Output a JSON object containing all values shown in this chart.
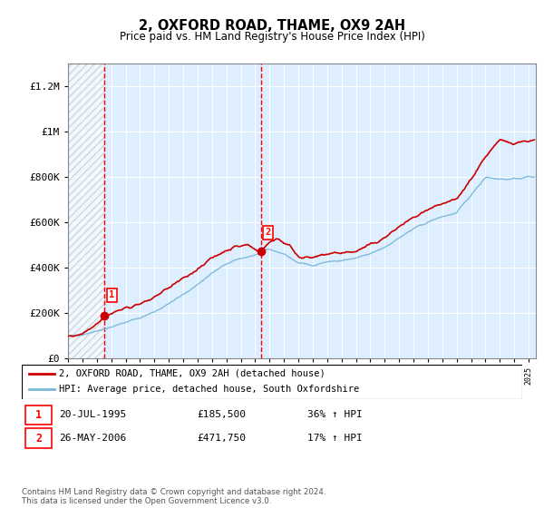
{
  "title": "2, OXFORD ROAD, THAME, OX9 2AH",
  "subtitle": "Price paid vs. HM Land Registry's House Price Index (HPI)",
  "legend_line1": "2, OXFORD ROAD, THAME, OX9 2AH (detached house)",
  "legend_line2": "HPI: Average price, detached house, South Oxfordshire",
  "sale1_date": "20-JUL-1995",
  "sale1_price": 185500,
  "sale1_hpi": "36% ↑ HPI",
  "sale1_label": "1",
  "sale1_year": 1995.55,
  "sale2_date": "26-MAY-2006",
  "sale2_price": 471750,
  "sale2_hpi": "17% ↑ HPI",
  "sale2_label": "2",
  "sale2_year": 2006.39,
  "footer": "Contains HM Land Registry data © Crown copyright and database right 2024.\nThis data is licensed under the Open Government Licence v3.0.",
  "hpi_color": "#7ab8d9",
  "price_color": "#cc0000",
  "background_plot": "#ddeeff",
  "ylim": [
    0,
    1300000
  ],
  "xlim_start": 1993.0,
  "xlim_end": 2025.5,
  "yticks": [
    0,
    200000,
    400000,
    600000,
    800000,
    1000000,
    1200000
  ],
  "ytick_labels": [
    "£0",
    "£200K",
    "£400K",
    "£600K",
    "£800K",
    "£1M",
    "£1.2M"
  ]
}
